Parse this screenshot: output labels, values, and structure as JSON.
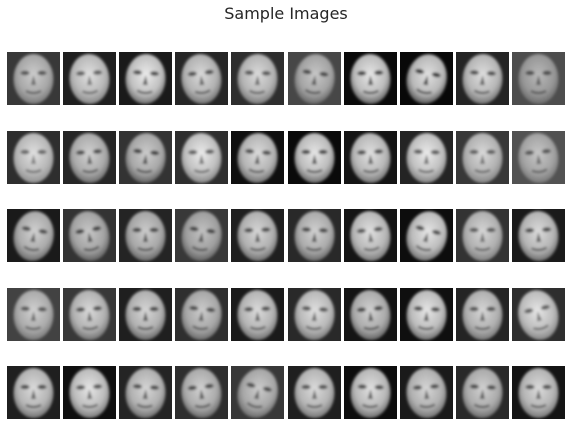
{
  "title": "Sample Images",
  "colors": {
    "background": "#ffffff",
    "title_text": "#262626"
  },
  "grid": {
    "rows": 5,
    "cols": 10
  },
  "faces": [
    {
      "bg": 0.22,
      "skin": 0.8,
      "tone": 0.45,
      "tilt": 0
    },
    {
      "bg": 0.12,
      "skin": 0.88,
      "tone": 0.5,
      "tilt": -3
    },
    {
      "bg": 0.1,
      "skin": 0.92,
      "tone": 0.4,
      "tilt": 4
    },
    {
      "bg": 0.15,
      "skin": 0.85,
      "tone": 0.42,
      "tilt": -6
    },
    {
      "bg": 0.18,
      "skin": 0.86,
      "tone": 0.45,
      "tilt": 2
    },
    {
      "bg": 0.28,
      "skin": 0.78,
      "tone": 0.38,
      "tilt": 8
    },
    {
      "bg": 0.04,
      "skin": 0.9,
      "tone": 0.35,
      "tilt": -2
    },
    {
      "bg": 0.03,
      "skin": 0.88,
      "tone": 0.3,
      "tilt": 12
    },
    {
      "bg": 0.14,
      "skin": 0.87,
      "tone": 0.42,
      "tilt": 3
    },
    {
      "bg": 0.3,
      "skin": 0.72,
      "tone": 0.4,
      "tilt": 0
    },
    {
      "bg": 0.18,
      "skin": 0.88,
      "tone": 0.55,
      "tilt": 0
    },
    {
      "bg": 0.15,
      "skin": 0.82,
      "tone": 0.4,
      "tilt": -4
    },
    {
      "bg": 0.2,
      "skin": 0.8,
      "tone": 0.35,
      "tilt": 6
    },
    {
      "bg": 0.18,
      "skin": 0.92,
      "tone": 0.5,
      "tilt": -2
    },
    {
      "bg": 0.06,
      "skin": 0.86,
      "tone": 0.4,
      "tilt": 5
    },
    {
      "bg": 0.04,
      "skin": 0.9,
      "tone": 0.38,
      "tilt": 0
    },
    {
      "bg": 0.08,
      "skin": 0.88,
      "tone": 0.42,
      "tilt": -3
    },
    {
      "bg": 0.14,
      "skin": 0.92,
      "tone": 0.48,
      "tilt": 2
    },
    {
      "bg": 0.22,
      "skin": 0.85,
      "tone": 0.5,
      "tilt": 0
    },
    {
      "bg": 0.32,
      "skin": 0.78,
      "tone": 0.45,
      "tilt": -5
    },
    {
      "bg": 0.1,
      "skin": 0.82,
      "tone": 0.4,
      "tilt": 10
    },
    {
      "bg": 0.2,
      "skin": 0.78,
      "tone": 0.35,
      "tilt": -10
    },
    {
      "bg": 0.14,
      "skin": 0.8,
      "tone": 0.38,
      "tilt": 0
    },
    {
      "bg": 0.22,
      "skin": 0.76,
      "tone": 0.36,
      "tilt": 8
    },
    {
      "bg": 0.12,
      "skin": 0.84,
      "tone": 0.4,
      "tilt": -2
    },
    {
      "bg": 0.16,
      "skin": 0.82,
      "tone": 0.38,
      "tilt": 3
    },
    {
      "bg": 0.08,
      "skin": 0.88,
      "tone": 0.45,
      "tilt": -6
    },
    {
      "bg": 0.05,
      "skin": 0.9,
      "tone": 0.42,
      "tilt": 15
    },
    {
      "bg": 0.2,
      "skin": 0.84,
      "tone": 0.48,
      "tilt": 0
    },
    {
      "bg": 0.1,
      "skin": 0.86,
      "tone": 0.4,
      "tilt": -3
    },
    {
      "bg": 0.26,
      "skin": 0.82,
      "tone": 0.45,
      "tilt": 2
    },
    {
      "bg": 0.22,
      "skin": 0.85,
      "tone": 0.42,
      "tilt": -4
    },
    {
      "bg": 0.12,
      "skin": 0.84,
      "tone": 0.38,
      "tilt": 0
    },
    {
      "bg": 0.18,
      "skin": 0.8,
      "tone": 0.4,
      "tilt": 6
    },
    {
      "bg": 0.1,
      "skin": 0.86,
      "tone": 0.42,
      "tilt": -2
    },
    {
      "bg": 0.16,
      "skin": 0.88,
      "tone": 0.45,
      "tilt": 4
    },
    {
      "bg": 0.08,
      "skin": 0.82,
      "tone": 0.36,
      "tilt": -5
    },
    {
      "bg": 0.06,
      "skin": 0.9,
      "tone": 0.4,
      "tilt": 3
    },
    {
      "bg": 0.14,
      "skin": 0.84,
      "tone": 0.44,
      "tilt": 0
    },
    {
      "bg": 0.18,
      "skin": 0.9,
      "tone": 0.5,
      "tilt": -12
    },
    {
      "bg": 0.12,
      "skin": 0.86,
      "tone": 0.42,
      "tilt": 0
    },
    {
      "bg": 0.06,
      "skin": 0.9,
      "tone": 0.45,
      "tilt": -3
    },
    {
      "bg": 0.14,
      "skin": 0.84,
      "tone": 0.4,
      "tilt": 4
    },
    {
      "bg": 0.18,
      "skin": 0.82,
      "tone": 0.38,
      "tilt": -6
    },
    {
      "bg": 0.22,
      "skin": 0.8,
      "tone": 0.4,
      "tilt": 14
    },
    {
      "bg": 0.12,
      "skin": 0.86,
      "tone": 0.44,
      "tilt": 0
    },
    {
      "bg": 0.05,
      "skin": 0.88,
      "tone": 0.4,
      "tilt": 2
    },
    {
      "bg": 0.1,
      "skin": 0.84,
      "tone": 0.42,
      "tilt": -4
    },
    {
      "bg": 0.16,
      "skin": 0.82,
      "tone": 0.4,
      "tilt": 3
    },
    {
      "bg": 0.08,
      "skin": 0.86,
      "tone": 0.44,
      "tilt": 0
    }
  ]
}
